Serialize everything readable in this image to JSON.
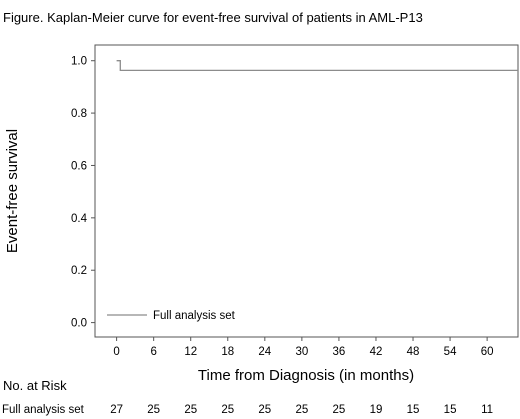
{
  "chart_data": {
    "type": "line",
    "title": "Figure. Kaplan-Meier curve for event-free survival of patients in AML-P13",
    "xlabel": "Time from Diagnosis (in months)",
    "ylabel": "Event-free survival",
    "xlim": [
      -3.5,
      65
    ],
    "ylim": [
      -0.055,
      1.06
    ],
    "xticks": [
      0,
      6,
      12,
      18,
      24,
      30,
      36,
      42,
      48,
      54,
      60
    ],
    "yticks": [
      0.0,
      0.2,
      0.4,
      0.6,
      0.8,
      1.0
    ],
    "ytick_labels": [
      "0.0",
      "0.2",
      "0.4",
      "0.6",
      "0.8",
      "1.0"
    ],
    "legend_position": "bottom-left",
    "series": [
      {
        "name": "Full analysis set",
        "color": "#8c8c8c",
        "step": true,
        "points": [
          {
            "x": 0,
            "y": 1.0
          },
          {
            "x": 0.6,
            "y": 1.0
          },
          {
            "x": 0.6,
            "y": 0.963
          },
          {
            "x": 65,
            "y": 0.963
          }
        ]
      }
    ],
    "risk_table": {
      "title": "No. at Risk",
      "rows": [
        {
          "label": "Full analysis set",
          "times": [
            0,
            6,
            12,
            18,
            24,
            30,
            36,
            42,
            48,
            54,
            60
          ],
          "values": [
            "27",
            "25",
            "25",
            "25",
            "25",
            "25",
            "25",
            "19",
            "15",
            "15",
            "11"
          ]
        }
      ]
    }
  }
}
